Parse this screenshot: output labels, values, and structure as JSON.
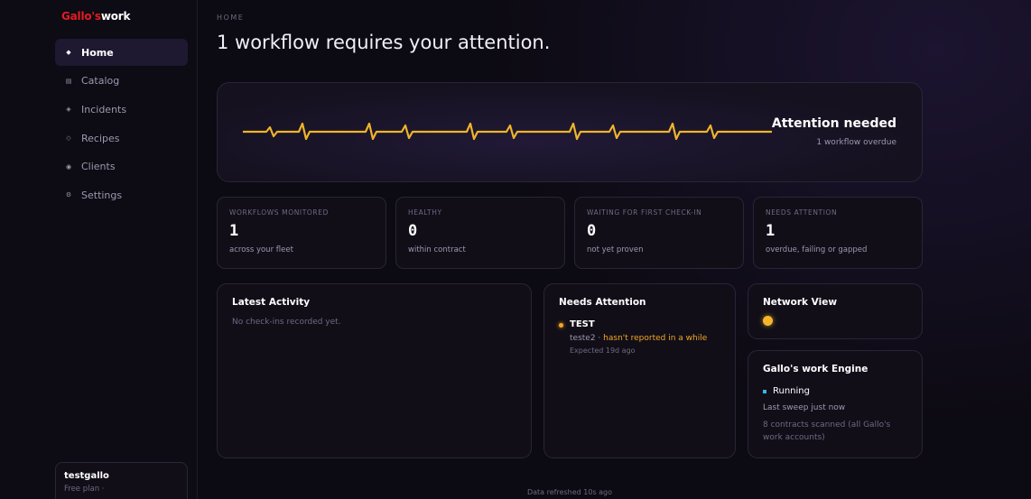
{
  "brand": {
    "part1": "Gallo's",
    "part2": "work"
  },
  "sidebar": {
    "items": [
      {
        "label": "Home",
        "icon": "◆"
      },
      {
        "label": "Catalog",
        "icon": "▤"
      },
      {
        "label": "Incidents",
        "icon": "◈"
      },
      {
        "label": "Recipes",
        "icon": "◇"
      },
      {
        "label": "Clients",
        "icon": "◉"
      },
      {
        "label": "Settings",
        "icon": "⚙"
      }
    ],
    "user": {
      "name": "testgallo",
      "plan": "Free plan ·"
    }
  },
  "header": {
    "breadcrumb": "HOME",
    "title": "1 workflow requires your attention."
  },
  "hero": {
    "title": "Attention needed",
    "subtitle": "1 workflow overdue"
  },
  "stats": [
    {
      "label": "WORKFLOWS MONITORED",
      "value": "1",
      "desc": "across your fleet"
    },
    {
      "label": "HEALTHY",
      "value": "0",
      "desc": "within contract"
    },
    {
      "label": "WAITING FOR FIRST CHECK-IN",
      "value": "0",
      "desc": "not yet proven"
    },
    {
      "label": "NEEDS ATTENTION",
      "value": "1",
      "desc": "overdue, failing or gapped"
    }
  ],
  "latest_activity": {
    "title": "Latest Activity",
    "empty": "No check-ins recorded yet."
  },
  "needs_attention": {
    "title": "Needs Attention",
    "items": [
      {
        "name": "TEST",
        "client": "teste2 ·",
        "status": "hasn't reported in a while",
        "expected": "Expected 19d ago"
      }
    ]
  },
  "network": {
    "title": "Network View"
  },
  "engine": {
    "title": "Gallo's work Engine",
    "status": "Running",
    "sweep": "Last sweep just now",
    "note": "8 contracts scanned (all Gallo's work accounts)"
  },
  "footer": {
    "refreshed": "Data refreshed 10s ago"
  },
  "colors": {
    "accent": "#f5b62b",
    "warning": "#f5a623",
    "brand_red": "#e31b23",
    "running": "#38b6e8"
  }
}
